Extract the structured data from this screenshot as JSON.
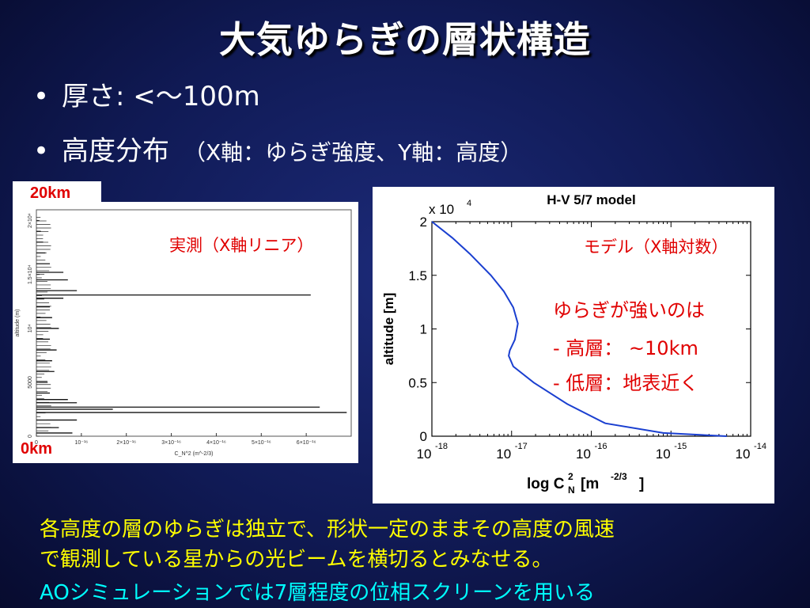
{
  "title": "大気ゆらぎの層状構造",
  "bullets": [
    {
      "text": "厚さ: <〜100m",
      "paren": ""
    },
    {
      "text": "高度分布",
      "paren": "（X軸：ゆらぎ強度、Y軸：高度）"
    }
  ],
  "bullet_marker": "•",
  "left_chart": {
    "top_label": "20km",
    "bottom_label": "0km",
    "annotation": "実測（X軸リニア）",
    "ylabel": "altitude (m)",
    "xlabel": "C_N^2 (m^-2/3)",
    "y_ticks": [
      "0",
      "5000",
      "10⁴",
      "1.5×10⁴",
      "2×10⁴"
    ],
    "x_ticks": [
      "0",
      "10⁻¹⁶",
      "2×10⁻¹⁶",
      "3×10⁻¹⁶",
      "4×10⁻¹⁶",
      "5×10⁻¹⁶",
      "6×10⁻¹⁶"
    ]
  },
  "right_chart": {
    "title": "H-V 5/7 model",
    "y_multiplier": "x 10",
    "y_multiplier_exp": "4",
    "ylabel": "altitude [m]",
    "xlabel_main": "log C",
    "xlabel_sup": "2",
    "xlabel_sub": "N",
    "xlabel_unit": "[m",
    "xlabel_unit_sup": "-2/3",
    "xlabel_unit_end": "]",
    "annotation_model": "モデル（X軸対数）",
    "annotation_strong": "ゆらぎが強いのは",
    "annotation_high": "- 高層： ~10km",
    "annotation_low": "- 低層：地表近く",
    "y_ticks": [
      "0",
      "0.5",
      "1",
      "1.5",
      "2"
    ],
    "x_tick_exps": [
      "-18",
      "-17",
      "-16",
      "-15",
      "-14"
    ],
    "x_tick_base": "10"
  },
  "footer": {
    "line1": "各高度の層のゆらぎは独立で、形状一定のままその高度の風速",
    "line2": "で観測している星からの光ビームを横切るとみなせる。",
    "line3": "AOシミュレーションでは7層程度の位相スクリーンを用いる"
  },
  "colors": {
    "red": "#e00000",
    "yellow": "#ffff00",
    "cyan": "#00ffff",
    "curve": "#1a3fd0"
  },
  "chart_data": [
    {
      "type": "bar",
      "orientation": "horizontal",
      "xlabel": "C_N^2 (m^-2/3)",
      "ylabel": "altitude (m)",
      "xlim": [
        0,
        7e-16
      ],
      "ylim": [
        0,
        21000
      ],
      "series": [
        {
          "altitude_m": [
            300,
            800,
            1500,
            2200,
            2500,
            2700,
            3100,
            3400,
            4000,
            5000,
            6000,
            7000,
            8000,
            9000,
            10000,
            11000,
            12000,
            12800,
            13100,
            13500,
            14500,
            15200,
            16000,
            17000,
            18000,
            19000,
            20000
          ],
          "cn2": [
            8e-17,
            5e-17,
            9e-17,
            6.9e-16,
            1.7e-16,
            6.3e-16,
            9e-17,
            7e-17,
            3e-17,
            2.5e-17,
            4e-17,
            3.5e-17,
            4.5e-17,
            3e-17,
            5e-17,
            3.5e-17,
            3e-17,
            6e-17,
            6.1e-16,
            9e-17,
            7e-17,
            6e-17,
            3e-17,
            2e-17,
            1.5e-17,
            1e-17,
            5e-18
          ]
        }
      ]
    },
    {
      "type": "line",
      "title": "H-V 5/7 model",
      "xlabel": "log Cn2 [m^-2/3]",
      "ylabel": "altitude [m]",
      "xscale": "log",
      "xlim": [
        1e-18,
        1e-14
      ],
      "ylim": [
        0,
        20000
      ],
      "series": [
        {
          "x": [
            1e-18,
            1.8e-18,
            3e-18,
            5.5e-18,
            8e-18,
            1.05e-17,
            1.2e-17,
            1.1e-17,
            9.5e-18,
            9.2e-18,
            1.05e-17,
            1.9e-17,
            5e-17,
            1.5e-16,
            8e-16,
            5e-15
          ],
          "y": [
            20000,
            18500,
            17000,
            15000,
            13500,
            12000,
            10500,
            9000,
            8000,
            7500,
            6500,
            5000,
            3000,
            1200,
            300,
            0
          ]
        }
      ]
    }
  ]
}
